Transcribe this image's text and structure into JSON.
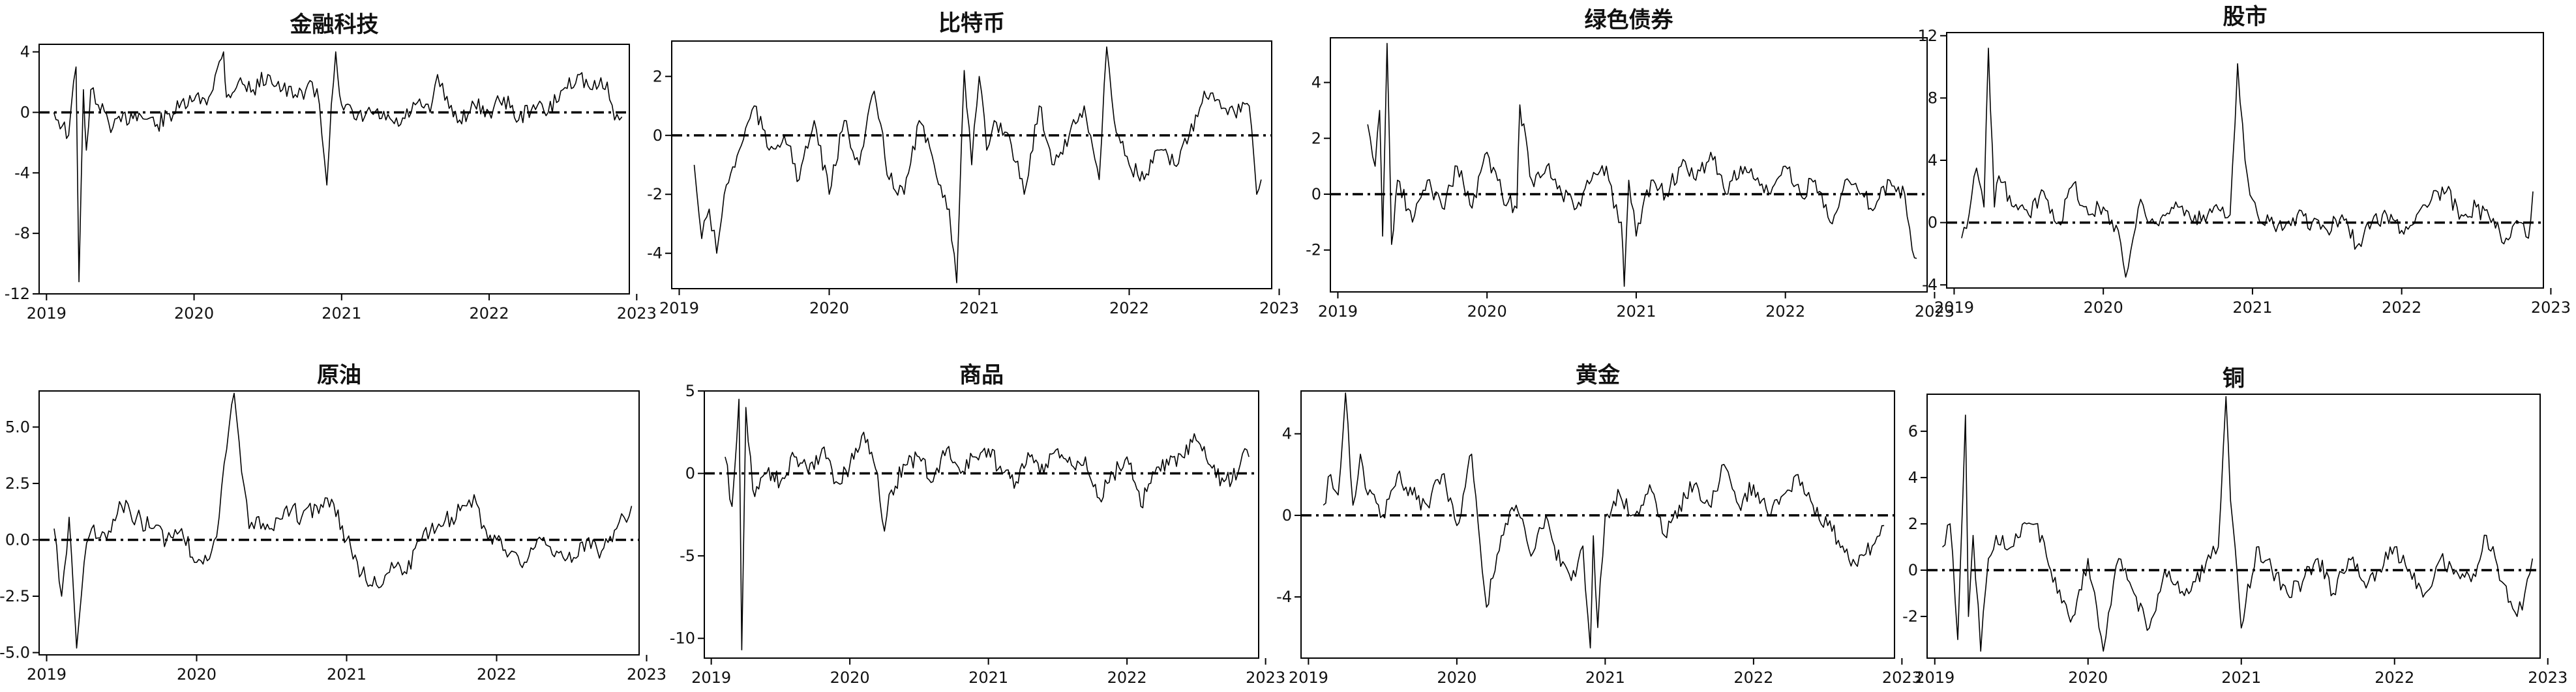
{
  "chart_data": [
    {
      "type": "line",
      "title": "金融科技",
      "x_range": [
        2019.0,
        2022.9
      ],
      "ylim": [
        -12,
        4.5
      ],
      "x_ticks": [
        {
          "value": 2019,
          "label": "2019"
        },
        {
          "value": 2020,
          "label": "2020"
        },
        {
          "value": 2021,
          "label": "2021"
        },
        {
          "value": 2022,
          "label": "2022"
        },
        {
          "value": 2023,
          "label": "2023"
        }
      ],
      "y_ticks": [
        {
          "value": 4,
          "label": "4"
        },
        {
          "value": 0,
          "label": "0"
        },
        {
          "value": -4,
          "label": "-4"
        },
        {
          "value": -8,
          "label": "-8"
        },
        {
          "value": -12,
          "label": "-12"
        }
      ],
      "reference_line": 0,
      "x": [
        2019.05,
        2019.15,
        2019.2,
        2019.22,
        2019.25,
        2019.27,
        2019.3,
        2019.35,
        2019.45,
        2019.6,
        2019.75,
        2019.9,
        2020.0,
        2020.1,
        2020.2,
        2020.22,
        2020.3,
        2020.4,
        2020.5,
        2020.6,
        2020.7,
        2020.8,
        2020.85,
        2020.9,
        2020.93,
        2020.96,
        2021.0,
        2021.1,
        2021.2,
        2021.3,
        2021.4,
        2021.5,
        2021.6,
        2021.65,
        2021.7,
        2021.8,
        2021.9,
        2022.0,
        2022.1,
        2022.2,
        2022.3,
        2022.4,
        2022.5,
        2022.6,
        2022.7,
        2022.8,
        2022.85,
        2022.9
      ],
      "y": [
        0.0,
        -1.5,
        3.0,
        -11.2,
        1.5,
        -2.5,
        1.5,
        0.5,
        -1.0,
        0.0,
        -0.8,
        0.3,
        0.8,
        1.0,
        4.0,
        1.0,
        2.0,
        1.5,
        2.5,
        1.5,
        1.0,
        2.0,
        0.5,
        -4.8,
        0.5,
        4.0,
        0.5,
        -0.5,
        0.0,
        -0.5,
        -0.8,
        0.5,
        0.0,
        2.5,
        0.8,
        -0.5,
        0.5,
        0.0,
        1.0,
        -0.5,
        0.5,
        0.0,
        1.5,
        2.5,
        1.5,
        2.0,
        -0.5,
        -0.3
      ]
    },
    {
      "type": "line",
      "title": "比特币",
      "x_range": [
        2019.0,
        2022.9
      ],
      "ylim": [
        -5.2,
        3.2
      ],
      "x_ticks": [
        {
          "value": 2019,
          "label": "2019"
        },
        {
          "value": 2020,
          "label": "2020"
        },
        {
          "value": 2021,
          "label": "2021"
        },
        {
          "value": 2022,
          "label": "2022"
        },
        {
          "value": 2023,
          "label": "2023"
        }
      ],
      "y_ticks": [
        {
          "value": 2,
          "label": "2"
        },
        {
          "value": 0,
          "label": "0"
        },
        {
          "value": -2,
          "label": "-2"
        },
        {
          "value": -4,
          "label": "-4"
        }
      ],
      "reference_line": 0,
      "x": [
        2019.1,
        2019.15,
        2019.2,
        2019.25,
        2019.3,
        2019.4,
        2019.5,
        2019.6,
        2019.7,
        2019.8,
        2019.9,
        2020.0,
        2020.1,
        2020.2,
        2020.3,
        2020.4,
        2020.5,
        2020.6,
        2020.7,
        2020.8,
        2020.85,
        2020.9,
        2020.95,
        2021.0,
        2021.05,
        2021.1,
        2021.2,
        2021.3,
        2021.4,
        2021.5,
        2021.6,
        2021.7,
        2021.8,
        2021.85,
        2021.9,
        2022.0,
        2022.1,
        2022.2,
        2022.3,
        2022.4,
        2022.5,
        2022.6,
        2022.7,
        2022.8,
        2022.85,
        2022.88
      ],
      "y": [
        -1.0,
        -3.5,
        -2.5,
        -4.0,
        -2.0,
        -0.5,
        1.0,
        -0.5,
        0.0,
        -1.5,
        0.5,
        -2.0,
        0.5,
        -1.0,
        1.5,
        -1.5,
        -2.0,
        0.5,
        -1.0,
        -2.5,
        -5.0,
        2.2,
        -1.0,
        2.0,
        -0.5,
        0.5,
        0.0,
        -2.0,
        1.0,
        -1.0,
        0.0,
        1.0,
        -1.5,
        3.0,
        0.5,
        -1.0,
        -1.5,
        -0.5,
        -1.0,
        0.0,
        1.5,
        1.2,
        0.8,
        1.0,
        -2.0,
        -1.5
      ]
    },
    {
      "type": "line",
      "title": "绿色债券",
      "x_range": [
        2019.0,
        2022.9
      ],
      "ylim": [
        -3.5,
        5.6
      ],
      "x_ticks": [
        {
          "value": 2019,
          "label": "2019"
        },
        {
          "value": 2020,
          "label": "2020"
        },
        {
          "value": 2021,
          "label": "2021"
        },
        {
          "value": 2022,
          "label": "2022"
        },
        {
          "value": 2023,
          "label": "2023"
        }
      ],
      "y_ticks": [
        {
          "value": 4,
          "label": "4"
        },
        {
          "value": 2,
          "label": "2"
        },
        {
          "value": 0,
          "label": "0"
        },
        {
          "value": -2,
          "label": "-2"
        }
      ],
      "reference_line": 0,
      "x": [
        2019.2,
        2019.25,
        2019.28,
        2019.3,
        2019.33,
        2019.36,
        2019.4,
        2019.5,
        2019.6,
        2019.7,
        2019.8,
        2019.9,
        2020.0,
        2020.1,
        2020.2,
        2020.22,
        2020.3,
        2020.4,
        2020.5,
        2020.6,
        2020.7,
        2020.8,
        2020.85,
        2020.9,
        2020.92,
        2020.95,
        2021.0,
        2021.1,
        2021.2,
        2021.3,
        2021.4,
        2021.5,
        2021.6,
        2021.7,
        2021.8,
        2021.9,
        2022.0,
        2022.1,
        2022.2,
        2022.3,
        2022.4,
        2022.5,
        2022.6,
        2022.7,
        2022.8,
        2022.85,
        2022.88
      ],
      "y": [
        2.5,
        1.0,
        3.0,
        -1.5,
        5.4,
        -1.8,
        0.5,
        -1.0,
        0.5,
        -0.5,
        1.0,
        -0.5,
        1.5,
        0.0,
        -0.5,
        3.2,
        0.5,
        1.0,
        0.0,
        -0.5,
        0.5,
        1.0,
        -0.5,
        -1.0,
        -3.3,
        0.5,
        -1.5,
        0.5,
        0.0,
        1.0,
        0.5,
        1.5,
        0.0,
        1.0,
        0.5,
        0.0,
        1.0,
        0.0,
        0.5,
        -1.0,
        0.5,
        0.0,
        -0.5,
        0.5,
        0.0,
        -2.0,
        -2.3
      ]
    },
    {
      "type": "line",
      "title": "股市",
      "x_range": [
        2019.0,
        2022.9
      ],
      "ylim": [
        -4.2,
        12.2
      ],
      "x_ticks": [
        {
          "value": 2019,
          "label": "2019"
        },
        {
          "value": 2020,
          "label": "2020"
        },
        {
          "value": 2021,
          "label": "2021"
        },
        {
          "value": 2022,
          "label": "2022"
        },
        {
          "value": 2023,
          "label": "2023"
        }
      ],
      "y_ticks": [
        {
          "value": 12,
          "label": "12"
        },
        {
          "value": 8,
          "label": "8"
        },
        {
          "value": 4,
          "label": "4"
        },
        {
          "value": 0,
          "label": "0"
        },
        {
          "value": -4,
          "label": "-4"
        }
      ],
      "reference_line": 0,
      "x": [
        2019.05,
        2019.1,
        2019.15,
        2019.2,
        2019.23,
        2019.27,
        2019.3,
        2019.4,
        2019.5,
        2019.6,
        2019.7,
        2019.8,
        2019.9,
        2020.0,
        2020.1,
        2020.15,
        2020.2,
        2020.25,
        2020.3,
        2020.4,
        2020.5,
        2020.6,
        2020.7,
        2020.8,
        2020.85,
        2020.9,
        2020.95,
        2021.0,
        2021.05,
        2021.1,
        2021.2,
        2021.3,
        2021.4,
        2021.5,
        2021.6,
        2021.7,
        2021.8,
        2021.9,
        2022.0,
        2022.1,
        2022.2,
        2022.3,
        2022.4,
        2022.5,
        2022.6,
        2022.7,
        2022.8,
        2022.85,
        2022.88
      ],
      "y": [
        -1.0,
        0.5,
        3.5,
        1.0,
        11.2,
        1.0,
        3.0,
        1.0,
        0.5,
        2.0,
        0.0,
        2.5,
        0.5,
        1.0,
        -0.5,
        -3.5,
        -1.0,
        1.5,
        0.0,
        0.5,
        1.0,
        0.0,
        0.5,
        1.0,
        0.5,
        10.2,
        4.0,
        1.5,
        0.0,
        0.5,
        -0.5,
        0.5,
        0.0,
        -0.5,
        0.5,
        -1.5,
        0.0,
        0.5,
        -0.5,
        0.5,
        1.5,
        2.0,
        0.5,
        1.0,
        0.0,
        -1.0,
        0.0,
        -1.0,
        2.0
      ]
    },
    {
      "type": "line",
      "title": "原油",
      "x_range": [
        2019.0,
        2022.9
      ],
      "ylim": [
        -5.1,
        6.6
      ],
      "x_ticks": [
        {
          "value": 2019,
          "label": "2019"
        },
        {
          "value": 2020,
          "label": "2020"
        },
        {
          "value": 2021,
          "label": "2021"
        },
        {
          "value": 2022,
          "label": "2022"
        },
        {
          "value": 2023,
          "label": "2023"
        }
      ],
      "y_ticks": [
        {
          "value": 5,
          "label": "5.0"
        },
        {
          "value": 2.5,
          "label": "2.5"
        },
        {
          "value": 0,
          "label": "0.0"
        },
        {
          "value": -2.5,
          "label": "-2.5"
        },
        {
          "value": -5,
          "label": "-5.0"
        }
      ],
      "reference_line": 0,
      "x": [
        2019.05,
        2019.1,
        2019.15,
        2019.2,
        2019.25,
        2019.3,
        2019.4,
        2019.5,
        2019.6,
        2019.7,
        2019.8,
        2019.9,
        2020.0,
        2020.1,
        2020.15,
        2020.2,
        2020.25,
        2020.3,
        2020.35,
        2020.4,
        2020.5,
        2020.6,
        2020.7,
        2020.8,
        2020.9,
        2021.0,
        2021.1,
        2021.2,
        2021.3,
        2021.4,
        2021.5,
        2021.6,
        2021.7,
        2021.8,
        2021.85,
        2021.9,
        2022.0,
        2022.1,
        2022.2,
        2022.3,
        2022.4,
        2022.5,
        2022.6,
        2022.7,
        2022.8,
        2022.85,
        2022.9
      ],
      "y": [
        0.5,
        -2.5,
        1.0,
        -4.8,
        -1.0,
        0.5,
        0.0,
        1.5,
        1.0,
        0.5,
        0.0,
        0.5,
        -1.0,
        -0.5,
        1.0,
        4.0,
        6.5,
        3.0,
        0.5,
        1.0,
        0.5,
        1.5,
        1.0,
        1.5,
        1.8,
        0.0,
        -1.5,
        -2.0,
        -1.0,
        -1.5,
        0.0,
        0.5,
        1.0,
        1.5,
        2.0,
        0.5,
        0.0,
        -0.5,
        -1.0,
        0.0,
        -0.5,
        -1.0,
        0.0,
        -0.5,
        0.5,
        1.0,
        1.5
      ]
    },
    {
      "type": "line",
      "title": "商品",
      "x_range": [
        2019.0,
        2022.9
      ],
      "ylim": [
        -11.2,
        5.0
      ],
      "x_ticks": [
        {
          "value": 2019,
          "label": "2019"
        },
        {
          "value": 2020,
          "label": "2020"
        },
        {
          "value": 2021,
          "label": "2021"
        },
        {
          "value": 2022,
          "label": "2022"
        },
        {
          "value": 2023,
          "label": "2023"
        }
      ],
      "y_ticks": [
        {
          "value": 5,
          "label": "5"
        },
        {
          "value": 0,
          "label": "0"
        },
        {
          "value": -5,
          "label": "-5"
        },
        {
          "value": -10,
          "label": "-10"
        }
      ],
      "reference_line": 0,
      "x": [
        2019.1,
        2019.15,
        2019.2,
        2019.22,
        2019.25,
        2019.3,
        2019.4,
        2019.5,
        2019.6,
        2019.7,
        2019.8,
        2019.9,
        2020.0,
        2020.1,
        2020.2,
        2020.25,
        2020.3,
        2020.4,
        2020.5,
        2020.6,
        2020.7,
        2020.8,
        2020.9,
        2021.0,
        2021.1,
        2021.2,
        2021.3,
        2021.4,
        2021.5,
        2021.6,
        2021.7,
        2021.8,
        2021.9,
        2022.0,
        2022.1,
        2022.2,
        2022.3,
        2022.4,
        2022.5,
        2022.6,
        2022.7,
        2022.8,
        2022.85,
        2022.88
      ],
      "y": [
        1.0,
        -2.0,
        4.5,
        -10.7,
        4.0,
        -1.0,
        0.0,
        -0.5,
        1.0,
        0.0,
        1.5,
        -0.5,
        0.5,
        2.5,
        0.0,
        -3.5,
        -1.0,
        0.5,
        1.0,
        -0.5,
        1.5,
        0.0,
        1.0,
        1.5,
        0.0,
        -0.5,
        1.0,
        0.0,
        1.5,
        0.5,
        1.0,
        -1.5,
        0.0,
        1.0,
        -2.0,
        0.0,
        0.5,
        1.0,
        2.0,
        0.5,
        -0.5,
        0.0,
        1.5,
        1.0
      ]
    },
    {
      "type": "line",
      "title": "黄金",
      "x_range": [
        2019.0,
        2022.9
      ],
      "ylim": [
        -7.0,
        6.1
      ],
      "x_ticks": [
        {
          "value": 2019,
          "label": "2019"
        },
        {
          "value": 2020,
          "label": "2020"
        },
        {
          "value": 2021,
          "label": "2021"
        },
        {
          "value": 2022,
          "label": "2022"
        },
        {
          "value": 2023,
          "label": "2023"
        }
      ],
      "y_ticks": [
        {
          "value": 4,
          "label": "4"
        },
        {
          "value": 0,
          "label": "0"
        },
        {
          "value": -4,
          "label": "-4"
        }
      ],
      "reference_line": 0,
      "x": [
        2019.1,
        2019.15,
        2019.2,
        2019.25,
        2019.3,
        2019.35,
        2019.4,
        2019.5,
        2019.6,
        2019.7,
        2019.8,
        2019.9,
        2020.0,
        2020.1,
        2020.2,
        2020.3,
        2020.4,
        2020.5,
        2020.6,
        2020.7,
        2020.8,
        2020.85,
        2020.9,
        2020.92,
        2020.95,
        2021.0,
        2021.1,
        2021.2,
        2021.3,
        2021.4,
        2021.5,
        2021.6,
        2021.7,
        2021.8,
        2021.9,
        2022.0,
        2022.1,
        2022.2,
        2022.3,
        2022.4,
        2022.5,
        2022.6,
        2022.7,
        2022.8,
        2022.85,
        2022.88
      ],
      "y": [
        0.5,
        2.0,
        1.0,
        6.0,
        0.5,
        3.0,
        1.0,
        0.0,
        2.0,
        1.0,
        0.5,
        2.0,
        -0.5,
        3.0,
        -4.5,
        -1.0,
        0.5,
        -2.0,
        0.0,
        -2.5,
        -3.0,
        -1.5,
        -6.5,
        -1.0,
        -5.5,
        0.0,
        1.0,
        0.0,
        1.5,
        -1.0,
        0.5,
        1.5,
        0.5,
        2.5,
        0.5,
        1.5,
        0.0,
        1.0,
        2.0,
        0.5,
        -0.5,
        -1.5,
        -2.5,
        -1.5,
        -1.0,
        -0.5
      ]
    },
    {
      "type": "line",
      "title": "铜",
      "x_range": [
        2019.0,
        2022.9
      ],
      "ylim": [
        -3.8,
        7.6
      ],
      "x_ticks": [
        {
          "value": 2019,
          "label": "2019"
        },
        {
          "value": 2020,
          "label": "2020"
        },
        {
          "value": 2021,
          "label": "2021"
        },
        {
          "value": 2022,
          "label": "2022"
        },
        {
          "value": 2023,
          "label": "2023"
        }
      ],
      "y_ticks": [
        {
          "value": 6,
          "label": "6"
        },
        {
          "value": 4,
          "label": "4"
        },
        {
          "value": 2,
          "label": "2"
        },
        {
          "value": 0,
          "label": "0"
        },
        {
          "value": -2,
          "label": "-2"
        }
      ],
      "reference_line": 0,
      "x": [
        2019.05,
        2019.1,
        2019.15,
        2019.2,
        2019.22,
        2019.25,
        2019.3,
        2019.35,
        2019.4,
        2019.5,
        2019.6,
        2019.7,
        2019.8,
        2019.9,
        2020.0,
        2020.1,
        2020.15,
        2020.2,
        2020.3,
        2020.4,
        2020.5,
        2020.6,
        2020.7,
        2020.8,
        2020.85,
        2020.9,
        2020.93,
        2020.96,
        2021.0,
        2021.1,
        2021.2,
        2021.3,
        2021.4,
        2021.5,
        2021.6,
        2021.7,
        2021.8,
        2021.9,
        2022.0,
        2022.1,
        2022.2,
        2022.3,
        2022.4,
        2022.5,
        2022.6,
        2022.7,
        2022.8,
        2022.85,
        2022.9
      ],
      "y": [
        1.0,
        2.0,
        -3.0,
        6.7,
        -2.0,
        1.5,
        -3.5,
        0.5,
        1.5,
        1.0,
        2.0,
        1.5,
        -1.0,
        -2.0,
        0.5,
        -3.5,
        -1.5,
        0.5,
        -1.0,
        -2.5,
        0.0,
        -1.0,
        -0.5,
        0.5,
        1.0,
        7.5,
        3.0,
        1.0,
        -2.5,
        1.0,
        0.0,
        -1.0,
        -0.5,
        0.5,
        -1.0,
        0.5,
        -0.5,
        0.0,
        1.0,
        0.0,
        -1.0,
        0.5,
        0.0,
        -0.5,
        1.5,
        -0.5,
        -2.0,
        -1.0,
        0.5
      ]
    }
  ]
}
